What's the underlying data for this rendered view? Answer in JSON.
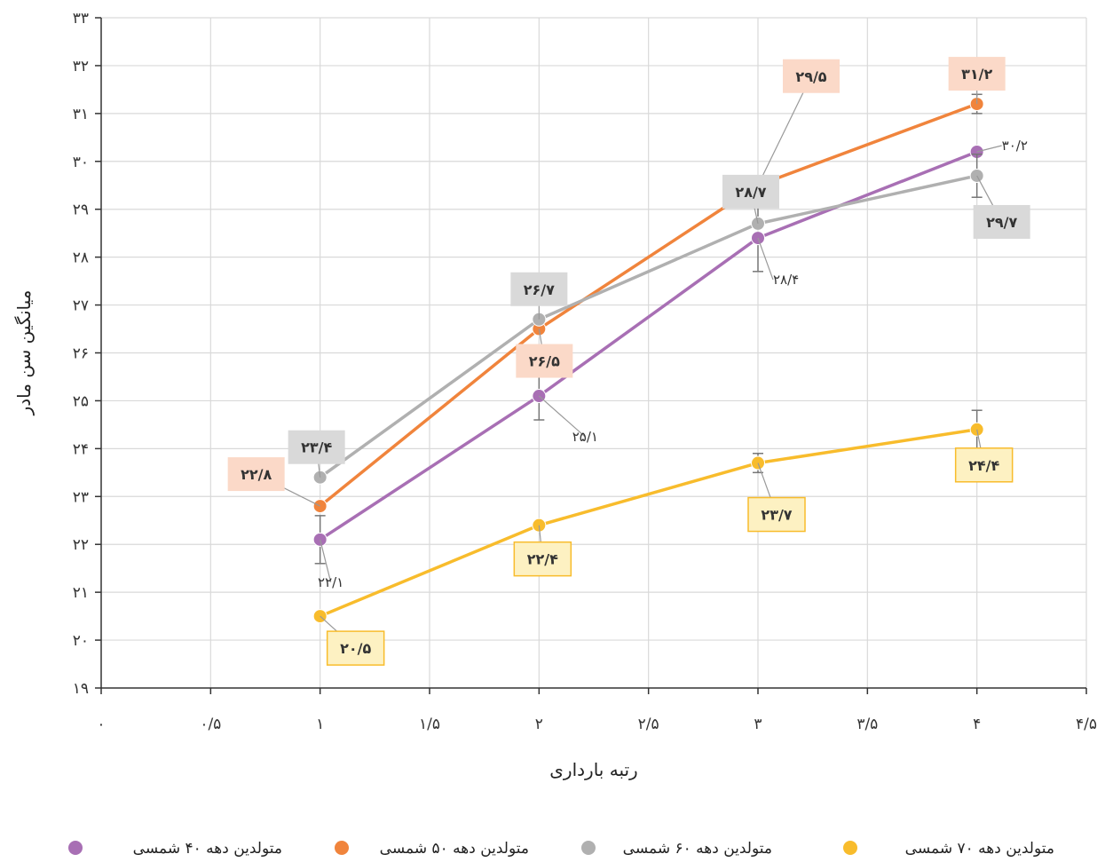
{
  "chart_data": {
    "type": "line",
    "title": "",
    "xlabel": "رتبه بارداری",
    "ylabel": "میانگین سن مادر",
    "xlim": [
      0,
      4.5
    ],
    "ylim": [
      19,
      33
    ],
    "grid": true,
    "legend_position": "bottom",
    "x_tick_labels": [
      "۰",
      "۰/۵",
      "۱",
      "۱/۵",
      "۲",
      "۲/۵",
      "۳",
      "۳/۵",
      "۴",
      "۴/۵"
    ],
    "y_tick_labels": [
      "۱۹",
      "۲۰",
      "۲۱",
      "۲۲",
      "۲۳",
      "۲۴",
      "۲۵",
      "۲۶",
      "۲۷",
      "۲۸",
      "۲۹",
      "۳۰",
      "۳۱",
      "۳۲",
      "۳۳"
    ],
    "series": [
      {
        "name": "متولدین دهه ۴۰ شمسی",
        "color": "#a86fb4",
        "x": [
          1,
          2,
          3,
          4
        ],
        "y": [
          22.1,
          25.1,
          28.4,
          30.2
        ],
        "error": [
          0.5,
          0.5,
          0.7,
          0.0
        ],
        "labels": [
          "۲۲/۱",
          "۲۵/۱",
          "۲۸/۴",
          "۳۰/۲"
        ]
      },
      {
        "name": "متولدین دهه ۵۰ شمسی",
        "color": "#f0843c",
        "x": [
          1,
          2,
          3,
          4
        ],
        "y": [
          22.8,
          26.5,
          29.5,
          31.2
        ],
        "error": [
          0.0,
          0.0,
          0.0,
          0.2
        ],
        "labels": [
          "۲۲/۸",
          "۲۶/۵",
          "۲۹/۵",
          "۳۱/۲"
        ]
      },
      {
        "name": "متولدین دهه ۶۰ شمسی",
        "color": "#b0b0b0",
        "x": [
          1,
          2,
          3,
          4
        ],
        "y": [
          23.4,
          26.7,
          28.7,
          29.7
        ],
        "error": [
          0.0,
          0.0,
          0.0,
          0.45
        ],
        "labels": [
          "۲۳/۴",
          "۲۶/۷",
          "۲۸/۷",
          "۲۹/۷"
        ]
      },
      {
        "name": "متولدین دهه ۷۰ شمسی",
        "color": "#f8bc2c",
        "x": [
          1,
          2,
          3,
          4
        ],
        "y": [
          20.5,
          22.4,
          23.7,
          24.4
        ],
        "error": [
          0.0,
          0.0,
          0.2,
          0.4
        ],
        "labels": [
          "۲۰/۵",
          "۲۲/۴",
          "۲۳/۷",
          "۲۴/۴"
        ]
      }
    ]
  }
}
